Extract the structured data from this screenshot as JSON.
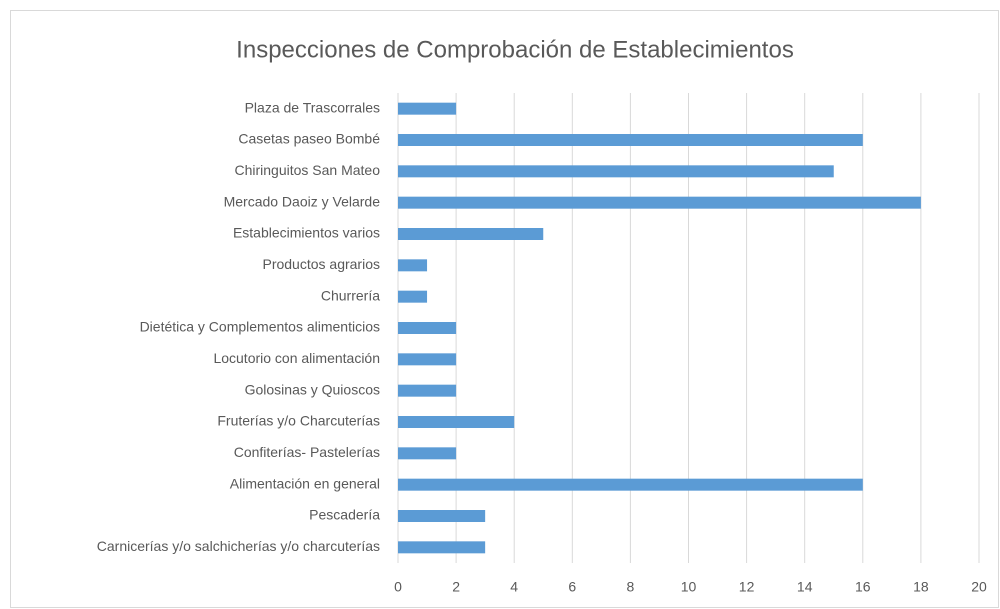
{
  "chart_data": {
    "type": "bar",
    "orientation": "horizontal",
    "title": "Inspecciones de Comprobación de Establecimientos",
    "categories": [
      "Plaza de Trascorrales",
      "Casetas paseo Bombé",
      "Chiringuitos San Mateo",
      "Mercado Daoiz y Velarde",
      "Establecimientos varios",
      "Productos agrarios",
      "Churrería",
      "Dietética y Complementos alimenticios",
      "Locutorio con alimentación",
      "Golosinas y Quioscos",
      "Fruterías y/o Charcuterías",
      "Confiterías- Pastelerías",
      "Alimentación en general",
      "Pescadería",
      "Carnicerías y/o salchicherías y/o charcuterías"
    ],
    "values": [
      2,
      16,
      15,
      18,
      5,
      1,
      1,
      2,
      2,
      2,
      4,
      2,
      16,
      3,
      3
    ],
    "color": "#5b9bd5",
    "xlim": [
      0,
      20
    ],
    "xticks": [
      0,
      2,
      4,
      6,
      8,
      10,
      12,
      14,
      16,
      18,
      20
    ],
    "grid": true
  }
}
